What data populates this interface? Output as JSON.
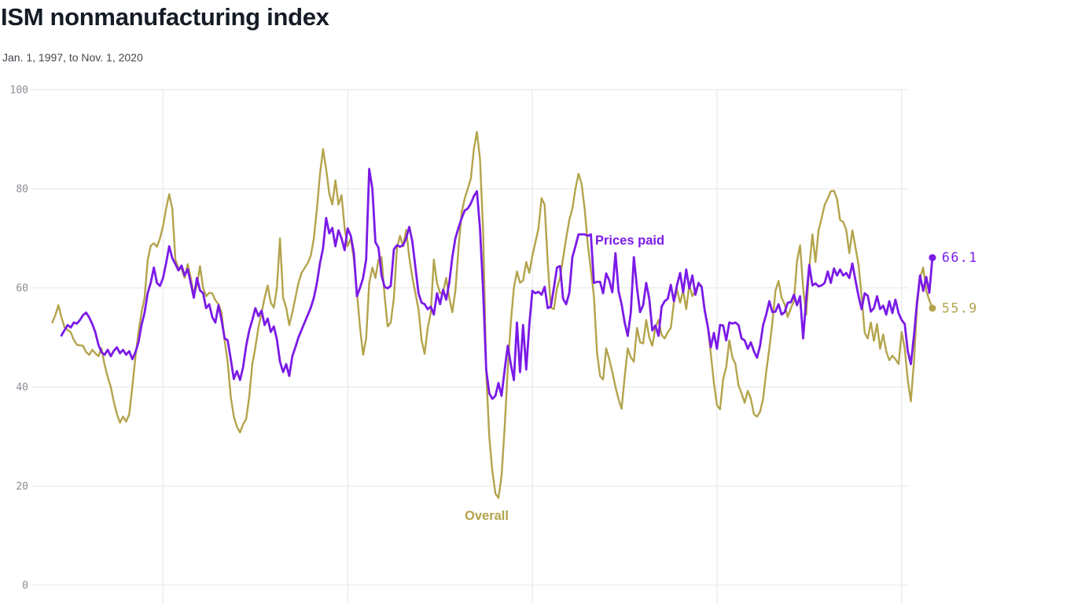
{
  "header": {
    "title": "ISM nonmanufacturing index",
    "subtitle": "Jan. 1, 1997, to Nov. 1, 2020"
  },
  "colors": {
    "prices_paid": "#7b1ae7",
    "overall": "#b3a44c",
    "grid": "#e6e6e6",
    "axis_label": "#888c92",
    "title": "#161c26",
    "subtitle": "#43464c"
  },
  "chart_data": {
    "type": "line",
    "title": "ISM nonmanufacturing index",
    "subtitle": "Jan. 1, 1997, to Nov. 1, 2020",
    "x_range_months": "Monthly, Jan 1997 (m=0) to Nov 2020 (m=286)",
    "ylim": [
      0,
      100
    ],
    "yticks": [
      0,
      20,
      40,
      60,
      80,
      100
    ],
    "x_gridline_years": [
      2000,
      2005,
      2010,
      2015,
      2020
    ],
    "grid": true,
    "legend_position": "inline-annotations",
    "series": [
      {
        "name": "Overall",
        "color_key": "overall",
        "end_label": "55.9",
        "end_value": 55.9,
        "values": [
          53,
          54.5,
          56.5,
          54,
          52,
          51.5,
          51,
          49.5,
          48.5,
          48.4,
          48.3,
          47,
          46.5,
          47.5,
          46.8,
          46.2,
          47.8,
          44.5,
          42,
          40,
          37,
          34.5,
          32.8,
          34,
          33,
          34.5,
          40,
          46,
          51,
          55,
          58,
          65.5,
          68.5,
          69,
          68.3,
          70,
          72.5,
          76,
          78.9,
          76,
          65.7,
          64,
          63.8,
          62,
          64.8,
          62,
          58.7,
          60.5,
          64.4,
          60,
          58.3,
          59,
          58.9,
          57.5,
          56.7,
          55,
          49.4,
          45,
          38,
          34,
          32,
          30.8,
          32.5,
          33.5,
          38,
          44.6,
          48,
          52,
          55,
          58,
          60.5,
          57,
          56,
          60,
          70,
          58,
          56,
          52.5,
          55,
          58,
          61,
          63,
          64,
          65,
          66.5,
          70,
          76,
          83,
          88,
          84,
          79,
          76.8,
          81.7,
          76.8,
          78.7,
          72.1,
          68.4,
          70,
          65.7,
          59,
          52,
          46.5,
          49.8,
          61,
          64.1,
          62,
          65.7,
          66.2,
          58.3,
          52.2,
          53,
          58,
          68.1,
          70.5,
          68.4,
          71.7,
          66.2,
          62.1,
          58.9,
          55.7,
          49.4,
          46.7,
          51.9,
          55,
          65.7,
          61,
          58.9,
          59.2,
          62,
          58,
          55.1,
          59.4,
          67.8,
          75.2,
          78,
          80,
          82,
          88,
          91.5,
          86,
          71.3,
          43,
          30,
          23,
          18.5,
          17.6,
          22,
          31.9,
          43.5,
          53,
          60,
          63.3,
          61,
          61.5,
          65.2,
          63,
          66.5,
          69.2,
          72,
          78.1,
          76.8,
          65,
          56,
          55.7,
          59.9,
          62,
          66,
          70,
          73.7,
          76,
          80,
          83,
          81,
          76,
          68.9,
          63.7,
          58.3,
          47,
          42.2,
          41.5,
          47.8,
          45.6,
          43,
          40,
          37.5,
          35.6,
          42,
          47.8,
          46,
          45.1,
          51.9,
          49,
          48.8,
          53.5,
          50,
          48.3,
          52,
          53.5,
          50.5,
          49.8,
          51,
          51.9,
          57,
          59.7,
          57,
          59.4,
          55.7,
          60.6,
          58.3,
          59.5,
          60.6,
          60.2,
          55.7,
          52.2,
          46.7,
          40.8,
          36.3,
          35.5,
          41.6,
          44,
          49.4,
          46,
          44.6,
          40.3,
          38.7,
          36.8,
          39.2,
          37.6,
          34.5,
          34,
          35,
          37.6,
          43,
          47.8,
          53,
          59.4,
          61.4,
          58,
          56.7,
          54.1,
          55.9,
          57.3,
          65.4,
          68.6,
          60,
          54.6,
          64,
          70.8,
          65.2,
          71.6,
          74,
          76.8,
          78,
          79.5,
          79.6,
          77.9,
          73.7,
          73.3,
          71.7,
          67,
          71.6,
          68.1,
          64.6,
          58.3,
          50.9,
          49.8,
          53,
          49.3,
          52.7,
          47.7,
          50.6,
          47.2,
          45.4,
          46.3,
          45.6,
          44.6,
          51.1,
          47.8,
          41.4,
          37.1,
          45,
          56.2,
          62,
          64.1,
          59.4,
          57.5,
          55.9
        ]
      },
      {
        "name": "Prices paid",
        "color_key": "prices_paid",
        "end_label": "66.1",
        "end_value": 66.1,
        "values": [
          null,
          null,
          null,
          50.4,
          51.5,
          52.5,
          52,
          53,
          52.8,
          53.5,
          54.5,
          55,
          54,
          52.7,
          51,
          48.5,
          47,
          46.5,
          47.5,
          46.2,
          47.3,
          48,
          46.8,
          47.5,
          46.5,
          47.2,
          45.6,
          47,
          49,
          52.5,
          55,
          58.9,
          61,
          64.1,
          61,
          60.4,
          62,
          65,
          68.4,
          66,
          64.8,
          63.5,
          64.5,
          62.5,
          63.8,
          61,
          58,
          62,
          59.5,
          58.9,
          55.9,
          56.7,
          54.1,
          53,
          56.5,
          53.5,
          49.8,
          49.4,
          45.6,
          41.6,
          43.2,
          41.4,
          44,
          48.3,
          51.4,
          53.5,
          55.9,
          54.3,
          55.4,
          52.5,
          53.8,
          51.1,
          52.2,
          49.6,
          45.1,
          43,
          44.6,
          42.2,
          46.2,
          48,
          50,
          51.5,
          53,
          54.5,
          56,
          58,
          61,
          65,
          68,
          74.1,
          71,
          72.1,
          68.4,
          71.6,
          70,
          67.6,
          72,
          70.5,
          67,
          58.3,
          60,
          62,
          65.7,
          84,
          80,
          69.2,
          68.1,
          62.5,
          60.2,
          59.9,
          60.4,
          67.8,
          68.6,
          68.3,
          68.6,
          70,
          72.3,
          69.4,
          64.1,
          58.9,
          57,
          56.7,
          55.7,
          56.2,
          54.6,
          58.9,
          56.7,
          59.6,
          57.6,
          61,
          66.2,
          70,
          72.1,
          74,
          75.6,
          76,
          77,
          78.5,
          79.5,
          72,
          59.4,
          43.5,
          38.7,
          37.6,
          38.2,
          40.8,
          38.2,
          43.5,
          48.3,
          44.6,
          41.4,
          53,
          43,
          52.5,
          43.5,
          52.5,
          59.4,
          58.9,
          59.2,
          58.6,
          60.2,
          55.9,
          56.2,
          60,
          64.1,
          64.4,
          57.8,
          56.7,
          59,
          66.2,
          68.4,
          70.8,
          70.8,
          70.8,
          70.5,
          70.8,
          61,
          61.2,
          61.2,
          58.9,
          62.9,
          61.5,
          59.1,
          67,
          59.4,
          56.7,
          53,
          50.3,
          55,
          66.2,
          60,
          55.1,
          56.5,
          61,
          57.8,
          51.4,
          52.4,
          50.3,
          56.2,
          57.3,
          57.8,
          60.6,
          57.3,
          60.5,
          63,
          59.1,
          63.7,
          59.9,
          62.5,
          58.6,
          61,
          60.2,
          55.4,
          52.2,
          48,
          50.9,
          47.7,
          52.5,
          52.4,
          49.4,
          53,
          52.8,
          53,
          52.5,
          49.8,
          49.4,
          47.7,
          49,
          47.2,
          45.9,
          48.3,
          52.5,
          54.6,
          57.3,
          55.1,
          55.2,
          56.7,
          54.6,
          55.1,
          57,
          57.1,
          58.6,
          56.5,
          58.3,
          49.8,
          57.8,
          64.6,
          60.5,
          60.9,
          60.3,
          60.5,
          61,
          63.3,
          61,
          63.9,
          62.5,
          63.7,
          62.5,
          63,
          62,
          64.9,
          61.5,
          58.3,
          55.7,
          58.9,
          58.4,
          55.2,
          55.9,
          58.3,
          55.7,
          56.4,
          54.6,
          57.3,
          54.9,
          57.6,
          54.9,
          53.5,
          52.7,
          47.2,
          44.6,
          50.3,
          57,
          62.5,
          59.4,
          62.2,
          59,
          66.1
        ]
      }
    ]
  }
}
